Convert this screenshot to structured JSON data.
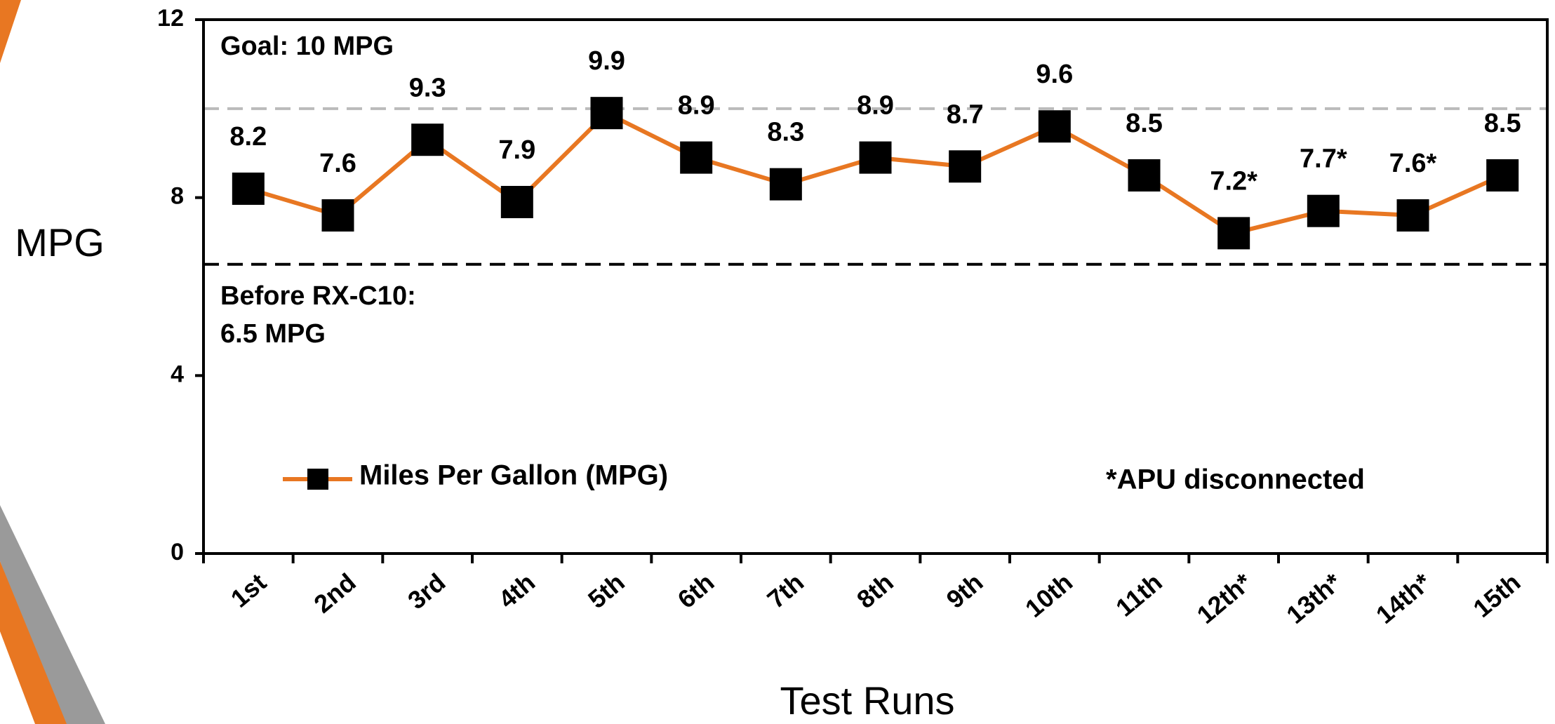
{
  "chart_data": {
    "type": "line",
    "x_label": "Test Runs",
    "y_label": "MPG",
    "categories": [
      "1st",
      "2nd",
      "3rd",
      "4th",
      "5th",
      "6th",
      "7th",
      "8th",
      "9th",
      "10th",
      "11th",
      "12th*",
      "13th*",
      "14th*",
      "15th"
    ],
    "series": [
      {
        "name": "Miles Per Gallon (MPG)",
        "color": "#e87722",
        "marker_color": "#000000",
        "values": [
          8.2,
          7.6,
          9.3,
          7.9,
          9.9,
          8.9,
          8.3,
          8.9,
          8.7,
          9.6,
          8.5,
          7.2,
          7.7,
          7.6,
          8.5
        ],
        "value_labels": [
          "8.2",
          "7.6",
          "9.3",
          "7.9",
          "9.9",
          "8.9",
          "8.3",
          "8.9",
          "8.7",
          "9.6",
          "8.5",
          "7.2*",
          "7.7*",
          "7.6*",
          "8.5"
        ]
      }
    ],
    "ylim": [
      0,
      12
    ],
    "yticks": [
      0,
      4,
      8,
      12
    ],
    "reference_lines": [
      {
        "value": 10,
        "color": "#bbbbbb"
      },
      {
        "value": 6.5,
        "color": "#000000"
      }
    ],
    "annotations": [
      "Goal: 10 MPG",
      "Before RX-C10:",
      "6.5 MPG"
    ],
    "footnote": "*APU disconnected",
    "legend": "lower left"
  }
}
